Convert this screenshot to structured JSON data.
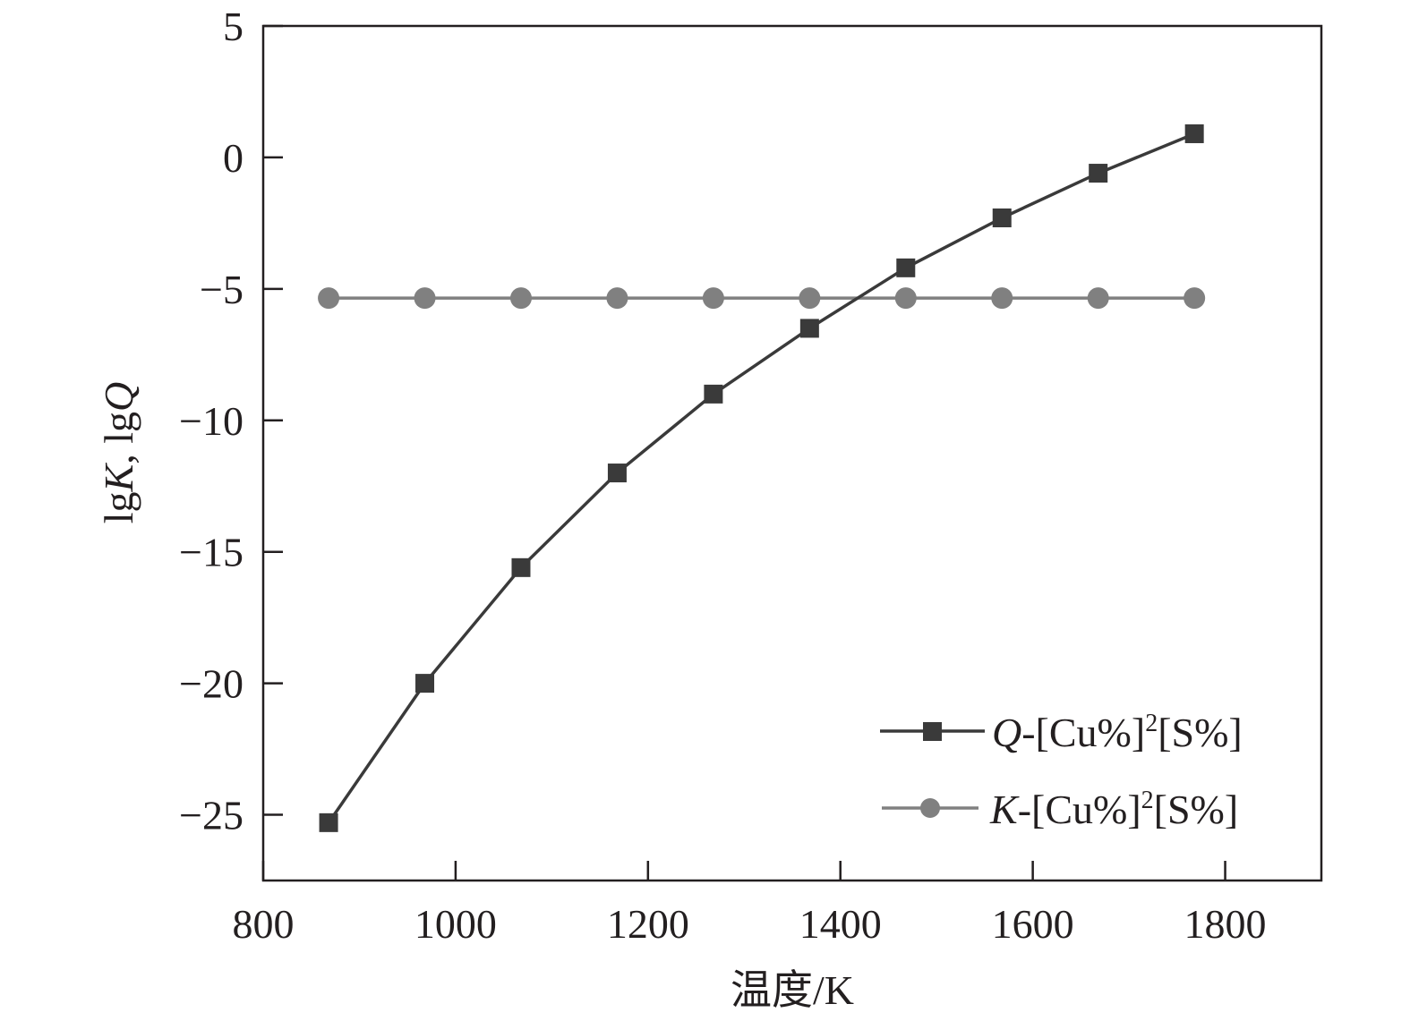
{
  "chart_data": {
    "type": "line",
    "xlabel": "温度/K",
    "ylabel": {
      "prefix": "lg",
      "var1": "K",
      "sep": ", lg",
      "var2": "Q"
    },
    "xlim": [
      800,
      1900
    ],
    "ylim": [
      -27.5,
      5
    ],
    "xticks": [
      800,
      1000,
      1200,
      1400,
      1600,
      1800
    ],
    "xtick_labels": [
      "800",
      "1000",
      "1200",
      "1400",
      "1600",
      "1800"
    ],
    "yticks": [
      5,
      0,
      -5,
      -10,
      -15,
      -20,
      -25
    ],
    "ytick_labels": [
      "5",
      "0",
      "−5",
      "−10",
      "−15",
      "−20",
      "−25"
    ],
    "grid": false,
    "legend_position": "bottom-right",
    "x": [
      868,
      968,
      1068,
      1168,
      1268,
      1368,
      1468,
      1568,
      1668,
      1768
    ],
    "series": [
      {
        "key": "Q",
        "legend_var": "Q",
        "legend_rest": "-[Cu%]",
        "legend_sup": "2",
        "legend_tail": "[S%]",
        "marker": "square",
        "color": "#3a3a3a",
        "values": [
          -25.3,
          -20.0,
          -15.6,
          -12.0,
          -9.0,
          -6.5,
          -4.2,
          -2.3,
          -0.6,
          0.9
        ]
      },
      {
        "key": "K",
        "legend_var": "K",
        "legend_rest": "-[Cu%]",
        "legend_sup": "2",
        "legend_tail": "[S%]",
        "marker": "circle",
        "color": "#808080",
        "values": [
          -5.35,
          -5.35,
          -5.35,
          -5.35,
          -5.35,
          -5.35,
          -5.35,
          -5.35,
          -5.35,
          -5.35
        ]
      }
    ]
  }
}
